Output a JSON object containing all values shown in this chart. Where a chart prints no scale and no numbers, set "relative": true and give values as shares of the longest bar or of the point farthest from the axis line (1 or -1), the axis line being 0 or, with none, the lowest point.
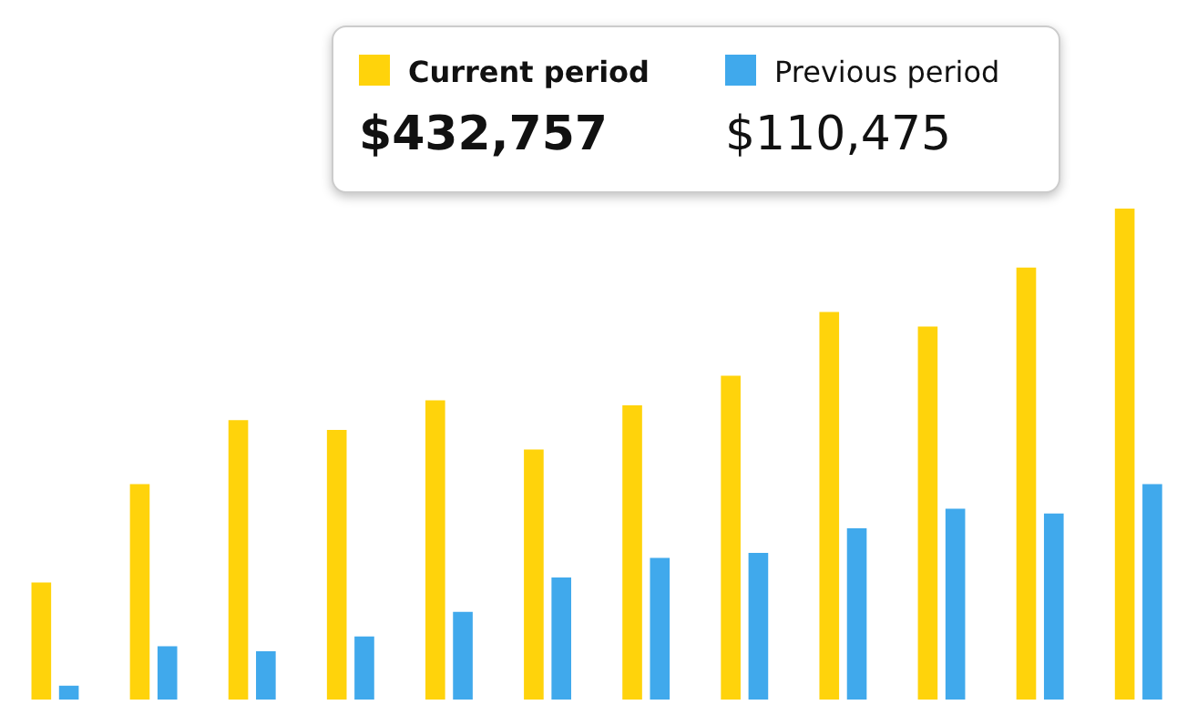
{
  "chart_data": {
    "type": "bar",
    "relative": true,
    "categories": [
      null,
      null,
      null,
      null,
      null,
      null,
      null,
      null,
      null,
      null,
      null,
      null
    ],
    "series": [
      {
        "name": "Current period",
        "color": "#ffd30b",
        "values": [
          0.24,
          0.44,
          0.57,
          0.55,
          0.61,
          0.51,
          0.6,
          0.66,
          0.79,
          0.76,
          0.88,
          1.0
        ]
      },
      {
        "name": "Previous period",
        "color": "#40a9ec",
        "values": [
          0.03,
          0.11,
          0.1,
          0.13,
          0.18,
          0.25,
          0.29,
          0.3,
          0.35,
          0.39,
          0.38,
          0.44
        ]
      }
    ],
    "legend": "top",
    "grid": false,
    "annotations": [
      "$432,757",
      "$110,475"
    ]
  }
}
